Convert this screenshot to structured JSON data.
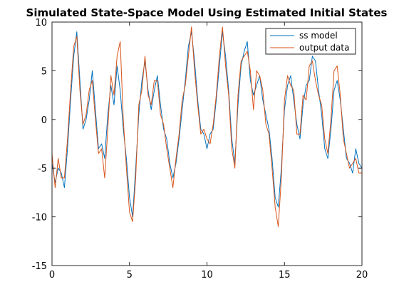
{
  "chart_data": {
    "type": "line",
    "title": "Simulated State-Space Model Using Estimated Initial States",
    "xlabel": "",
    "ylabel": "",
    "xlim": [
      0,
      20
    ],
    "ylim": [
      -15,
      10
    ],
    "xticks": [
      0,
      5,
      10,
      15,
      20
    ],
    "yticks": [
      10,
      5,
      0,
      -5,
      -10,
      -15
    ],
    "xtick_labels": [
      "0",
      "5",
      "10",
      "15",
      "20"
    ],
    "ytick_labels": [
      "10",
      "5",
      "0",
      "-5",
      "-10",
      "-15"
    ],
    "grid": false,
    "legend_position": "top-right",
    "series": [
      {
        "name": "ss model",
        "color": "#0072BD",
        "x": [
          0,
          0.2,
          0.4,
          0.6,
          0.8,
          1.0,
          1.2,
          1.4,
          1.6,
          1.8,
          2.0,
          2.2,
          2.4,
          2.6,
          2.8,
          3.0,
          3.2,
          3.4,
          3.6,
          3.8,
          4.0,
          4.2,
          4.4,
          4.6,
          4.8,
          5.0,
          5.2,
          5.4,
          5.6,
          5.8,
          6.0,
          6.2,
          6.4,
          6.6,
          6.8,
          7.0,
          7.2,
          7.4,
          7.6,
          7.8,
          8.0,
          8.2,
          8.4,
          8.6,
          8.8,
          9.0,
          9.2,
          9.4,
          9.6,
          9.8,
          10.0,
          10.2,
          10.4,
          10.6,
          10.8,
          11.0,
          11.2,
          11.4,
          11.6,
          11.8,
          12.0,
          12.2,
          12.4,
          12.6,
          12.8,
          13.0,
          13.2,
          13.4,
          13.6,
          13.8,
          14.0,
          14.2,
          14.4,
          14.6,
          14.8,
          15.0,
          15.2,
          15.4,
          15.6,
          15.8,
          16.0,
          16.2,
          16.4,
          16.6,
          16.8,
          17.0,
          17.2,
          17.4,
          17.6,
          17.8,
          18.0,
          18.2,
          18.4,
          18.6,
          18.8,
          19.0,
          19.2,
          19.4,
          19.6,
          19.8,
          20.0
        ],
        "values": [
          -4.5,
          -6.5,
          -5.0,
          -5.5,
          -7.0,
          -3.0,
          2.0,
          6.5,
          9.0,
          4.0,
          -1.0,
          0.0,
          2.0,
          5.0,
          1.0,
          -3.0,
          -2.5,
          -4.0,
          0.5,
          3.5,
          1.5,
          5.5,
          3.0,
          -1.0,
          -4.0,
          -8.0,
          -10.0,
          -5.0,
          0.5,
          4.0,
          6.0,
          3.0,
          1.0,
          3.0,
          4.5,
          1.5,
          -1.0,
          -2.0,
          -4.5,
          -6.0,
          -4.5,
          -2.0,
          1.0,
          4.0,
          7.5,
          9.0,
          6.0,
          2.0,
          -1.0,
          -1.5,
          -3.0,
          -1.5,
          -1.0,
          2.0,
          5.5,
          9.0,
          6.5,
          3.0,
          -2.0,
          -4.5,
          1.5,
          5.5,
          7.0,
          8.0,
          4.0,
          2.5,
          3.5,
          4.5,
          2.0,
          0.5,
          -1.0,
          -4.0,
          -8.0,
          -9.0,
          -5.0,
          1.0,
          3.5,
          4.5,
          2.0,
          -0.5,
          -2.0,
          1.5,
          3.5,
          4.0,
          6.5,
          6.0,
          3.0,
          0.5,
          -3.0,
          -4.0,
          -1.0,
          3.0,
          4.0,
          2.0,
          -1.0,
          -4.0,
          -4.5,
          -5.5,
          -3.0,
          -4.5,
          -5.0
        ]
      },
      {
        "name": "output data",
        "color": "#D95319",
        "x": [
          0,
          0.2,
          0.4,
          0.6,
          0.8,
          1.0,
          1.2,
          1.4,
          1.6,
          1.8,
          2.0,
          2.2,
          2.4,
          2.6,
          2.8,
          3.0,
          3.2,
          3.4,
          3.6,
          3.8,
          4.0,
          4.2,
          4.4,
          4.6,
          4.8,
          5.0,
          5.2,
          5.4,
          5.6,
          5.8,
          6.0,
          6.2,
          6.4,
          6.6,
          6.8,
          7.0,
          7.2,
          7.4,
          7.6,
          7.8,
          8.0,
          8.2,
          8.4,
          8.6,
          8.8,
          9.0,
          9.2,
          9.4,
          9.6,
          9.8,
          10.0,
          10.2,
          10.4,
          10.6,
          10.8,
          11.0,
          11.2,
          11.4,
          11.6,
          11.8,
          12.0,
          12.2,
          12.4,
          12.6,
          12.8,
          13.0,
          13.2,
          13.4,
          13.6,
          13.8,
          14.0,
          14.2,
          14.4,
          14.6,
          14.8,
          15.0,
          15.2,
          15.4,
          15.6,
          15.8,
          16.0,
          16.2,
          16.4,
          16.6,
          16.8,
          17.0,
          17.2,
          17.4,
          17.6,
          17.8,
          18.0,
          18.2,
          18.4,
          18.6,
          18.8,
          19.0,
          19.2,
          19.4,
          19.6,
          19.8,
          20.0
        ],
        "values": [
          -3.5,
          -7.0,
          -4.0,
          -6.0,
          -6.0,
          -2.0,
          3.0,
          7.5,
          8.5,
          3.0,
          -0.5,
          0.5,
          3.0,
          4.0,
          0.0,
          -3.5,
          -3.0,
          -6.0,
          -1.0,
          4.5,
          2.5,
          6.5,
          8.0,
          0.0,
          -5.0,
          -9.5,
          -10.5,
          -6.0,
          1.5,
          3.0,
          6.5,
          2.5,
          1.5,
          4.0,
          4.0,
          0.5,
          -0.5,
          -3.0,
          -5.0,
          -7.0,
          -4.0,
          -1.5,
          2.0,
          3.5,
          6.5,
          9.5,
          5.0,
          1.5,
          -1.5,
          -1.0,
          -2.0,
          -2.5,
          -0.5,
          2.5,
          6.5,
          9.5,
          5.5,
          2.5,
          -3.0,
          -5.0,
          2.5,
          6.0,
          6.5,
          7.0,
          5.0,
          1.0,
          5.0,
          4.5,
          3.0,
          -0.5,
          -1.5,
          -5.0,
          -9.0,
          -11.0,
          -6.0,
          2.0,
          4.5,
          3.5,
          3.0,
          -1.5,
          -1.5,
          2.5,
          2.0,
          5.5,
          6.0,
          4.0,
          2.5,
          1.5,
          -2.0,
          -3.5,
          0.0,
          5.0,
          5.5,
          2.5,
          -2.0,
          -3.5,
          -5.0,
          -4.5,
          -4.0,
          -5.5,
          -5.5
        ]
      }
    ]
  }
}
